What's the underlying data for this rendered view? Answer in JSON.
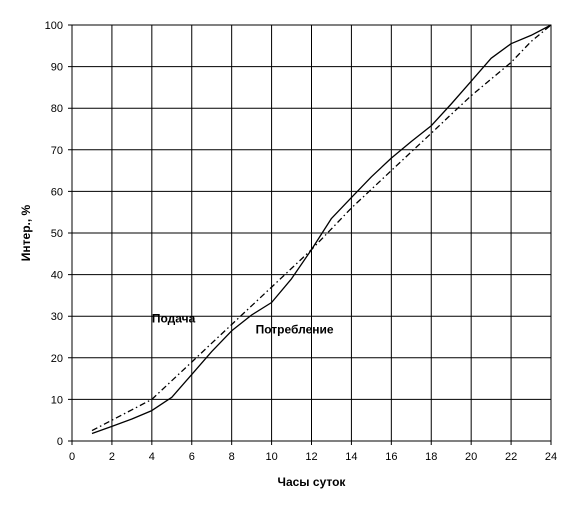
{
  "chart_data": {
    "type": "line",
    "title": "",
    "xlabel": "Часы суток",
    "ylabel": "Интер., %",
    "xlim": [
      0,
      24
    ],
    "ylim": [
      0,
      100
    ],
    "x_ticks": [
      "0",
      "2",
      "4",
      "6",
      "8",
      "10",
      "12",
      "14",
      "16",
      "18",
      "20",
      "22",
      "24"
    ],
    "y_ticks": [
      "0",
      "10",
      "20",
      "30",
      "40",
      "50",
      "60",
      "70",
      "80",
      "90",
      "100"
    ],
    "grid": true,
    "legend": "none",
    "series": [
      {
        "name": "Подача",
        "style": "dash-dot",
        "x": [
          1,
          2,
          3,
          4,
          5,
          6,
          7,
          8,
          9,
          10,
          11,
          12,
          13,
          14,
          15,
          16,
          17,
          18,
          19,
          20,
          21,
          22,
          23,
          24
        ],
        "y": [
          2.5,
          5,
          7.5,
          10,
          14.5,
          19,
          23.5,
          28,
          32.5,
          37,
          41.5,
          46,
          51,
          56,
          60.5,
          65,
          69.5,
          74,
          78.5,
          83,
          87,
          91,
          96,
          100
        ]
      },
      {
        "name": "Потребление",
        "style": "solid",
        "x": [
          1,
          2,
          3,
          4,
          5,
          6,
          7,
          8,
          9,
          10,
          11,
          12,
          13,
          14,
          15,
          16,
          17,
          18,
          19,
          20,
          21,
          22,
          23,
          24
        ],
        "y": [
          1.8,
          3.5,
          5.3,
          7.3,
          10.5,
          16,
          21.5,
          26.5,
          30.3,
          33.3,
          39,
          46,
          53.5,
          58.5,
          63.5,
          68,
          72,
          75.8,
          81,
          86.5,
          92,
          95.5,
          97.5,
          100
        ]
      }
    ],
    "annotations": [
      {
        "text": "Подача",
        "x": 4,
        "y": 28.5
      },
      {
        "text": "Потребление",
        "x": 9.2,
        "y": 25.8
      }
    ],
    "colors": {
      "line": "#000000",
      "grid": "#000000",
      "background": "#ffffff"
    }
  }
}
